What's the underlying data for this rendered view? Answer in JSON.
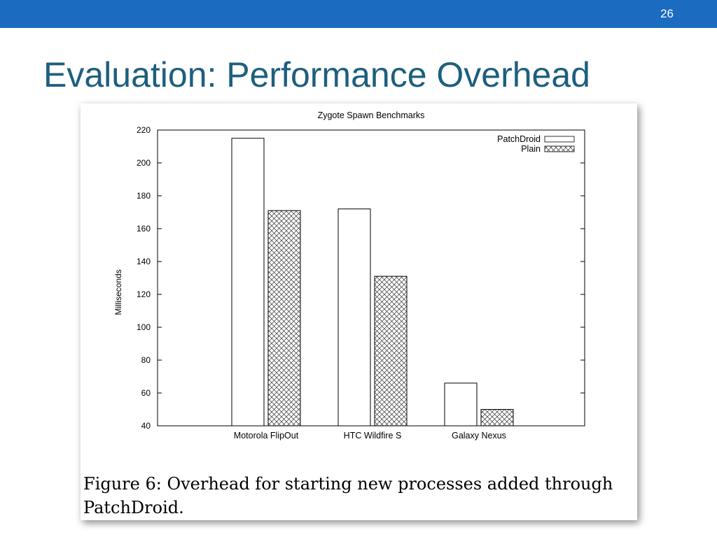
{
  "slide": {
    "number": "26",
    "title": "Evaluation: Performance Overhead",
    "caption": "Figure 6: Overhead for starting new processes added through PatchDroid."
  },
  "colors": {
    "topbar": "#1b6cc0",
    "title": "#1d5f7e"
  },
  "chart_data": {
    "type": "bar",
    "title": "Zygote Spawn Benchmarks",
    "xlabel": "",
    "ylabel": "Milliseconds",
    "ylim": [
      40,
      220
    ],
    "yticks": [
      40,
      60,
      80,
      100,
      120,
      140,
      160,
      180,
      200,
      220
    ],
    "categories": [
      "Motorola FlipOut",
      "HTC Wildfire S",
      "Galaxy Nexus"
    ],
    "series": [
      {
        "name": "PatchDroid",
        "values": [
          215,
          172,
          66
        ],
        "fill": "solid-white"
      },
      {
        "name": "Plain",
        "values": [
          171,
          131,
          50
        ],
        "fill": "crosshatch"
      }
    ],
    "legend": "top-right",
    "grid": false
  }
}
